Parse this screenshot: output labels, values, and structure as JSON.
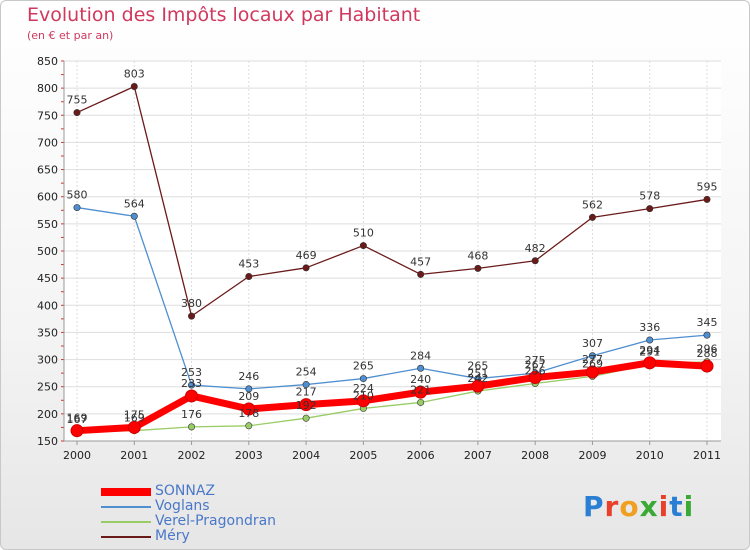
{
  "chart_data": {
    "type": "line",
    "title": "Evolution des Impôts locaux par Habitant",
    "subtitle": "(en € et par an)",
    "xlabel": "",
    "ylabel": "",
    "ylim": [
      150,
      850
    ],
    "yticks": [
      150,
      200,
      250,
      300,
      350,
      400,
      450,
      500,
      550,
      600,
      650,
      700,
      750,
      800,
      850
    ],
    "categories": [
      "2000",
      "2001",
      "2002",
      "2003",
      "2004",
      "2005",
      "2006",
      "2007",
      "2008",
      "2009",
      "2010",
      "2011"
    ],
    "grid": true,
    "legend_position": "bottom-left",
    "series": [
      {
        "name": "SONNAZ",
        "color": "#ff0000",
        "values": [
          169,
          175,
          233,
          209,
          217,
          224,
          240,
          251,
          267,
          277,
          294,
          288
        ],
        "labels": [
          "169",
          "175",
          "233",
          "209",
          "217",
          "224",
          "240",
          "251",
          "267",
          "277",
          "294",
          "288"
        ]
      },
      {
        "name": "Voglans",
        "color": "#4f8fd0",
        "values": [
          580,
          564,
          253,
          246,
          254,
          265,
          284,
          265,
          275,
          307,
          336,
          345
        ],
        "labels": [
          "580",
          "564",
          "253",
          "246",
          "254",
          "265",
          "284",
          "265",
          "275",
          "307",
          "336",
          "345"
        ]
      },
      {
        "name": "Verel-Pragondran",
        "color": "#99cc66",
        "values": [
          167,
          169,
          176,
          178,
          192,
          210,
          221,
          242,
          256,
          269,
          291,
          296
        ],
        "labels": [
          "167",
          "169",
          "176",
          "178",
          "192",
          "210",
          "221",
          "242",
          "256",
          "269",
          "291",
          "296"
        ]
      },
      {
        "name": "Méry",
        "color": "#6b1a1a",
        "values": [
          755,
          803,
          380,
          453,
          469,
          510,
          457,
          468,
          482,
          562,
          578,
          595
        ],
        "labels": [
          "755",
          "803",
          "380",
          "453",
          "469",
          "510",
          "457",
          "468",
          "482",
          "562",
          "578",
          "595"
        ]
      }
    ]
  },
  "logo": {
    "text": "Proxiti",
    "letters": [
      "P",
      "r",
      "o",
      "x",
      "i",
      "t",
      "i"
    ],
    "colors": [
      "#2a7fd4",
      "#e8402a",
      "#f0a020",
      "#3aaa35",
      "#e8402a",
      "#2a7fd4",
      "#3aaa35"
    ]
  }
}
